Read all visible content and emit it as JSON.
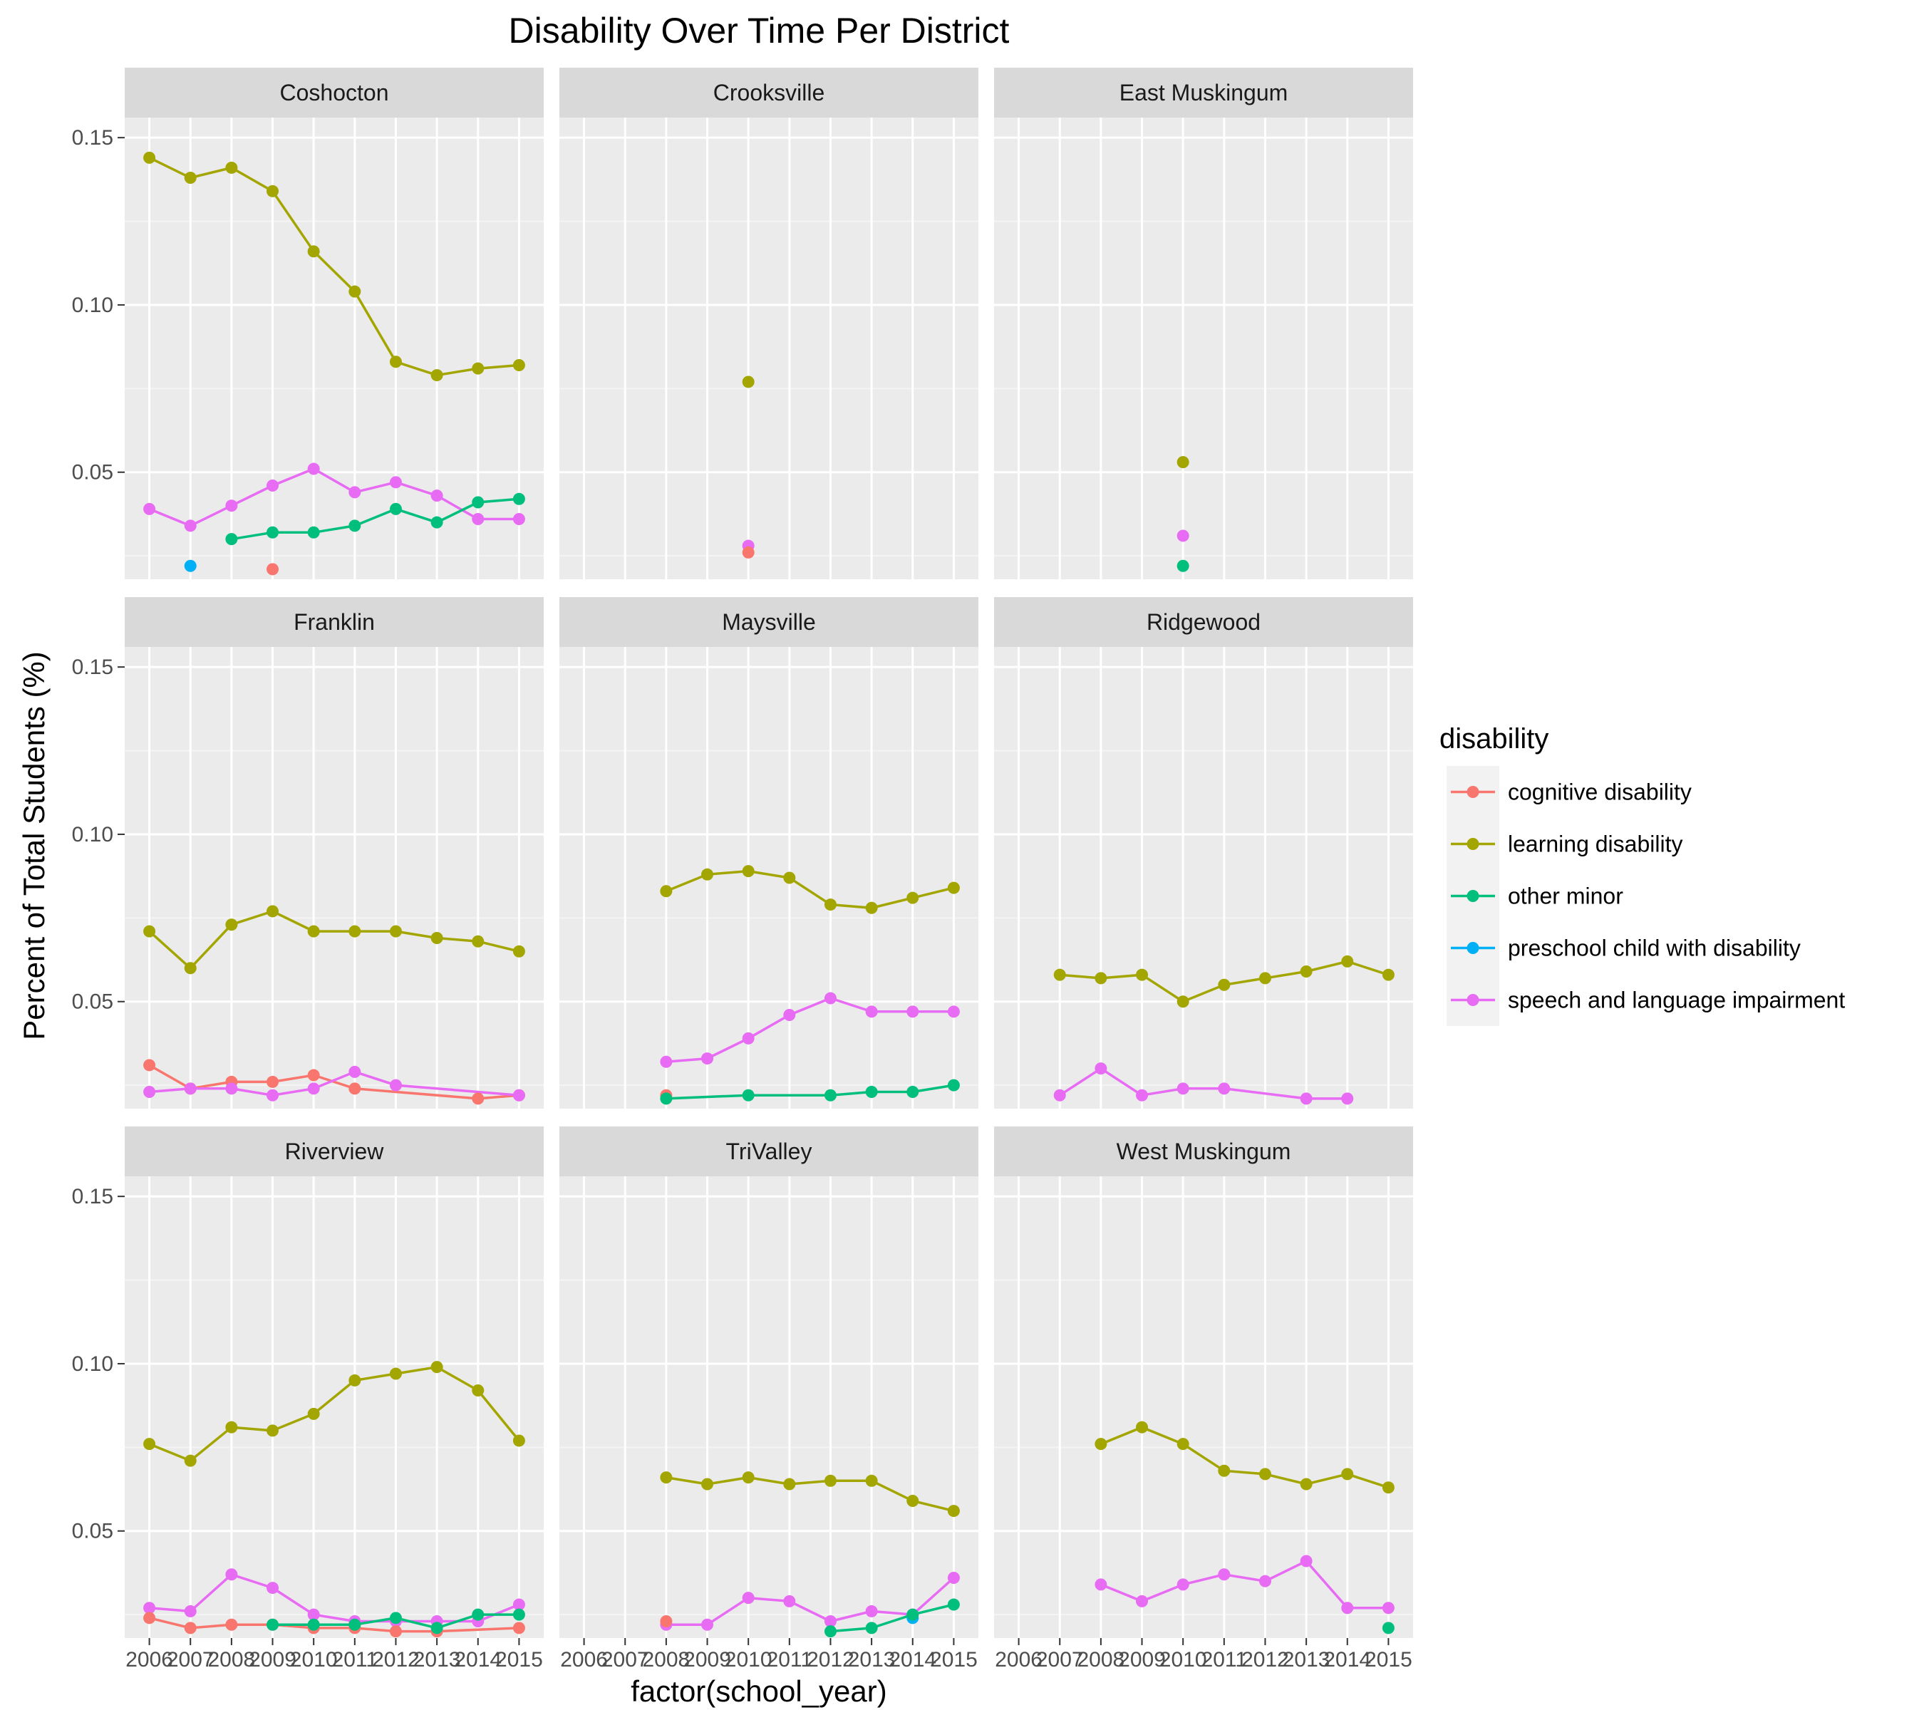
{
  "chart_data": {
    "type": "line",
    "title": "Disability Over Time Per District",
    "xlabel": "factor(school_year)",
    "ylabel": "Percent of Total Students (%)",
    "x_categories": [
      "2006",
      "2007",
      "2008",
      "2009",
      "2010",
      "2011",
      "2012",
      "2013",
      "2014",
      "2015"
    ],
    "y_ticks": [
      0.05,
      0.1,
      0.15
    ],
    "y_tick_labels": [
      "0.05",
      "0.10",
      "0.15"
    ],
    "ylim": [
      0.018,
      0.156
    ],
    "grid": true,
    "legend": {
      "title": "disability",
      "position": "right",
      "entries": [
        {
          "name": "cognitive disability",
          "color": "#F8766D"
        },
        {
          "name": "learning disability",
          "color": "#A3A500"
        },
        {
          "name": "other minor",
          "color": "#00BF7D"
        },
        {
          "name": "preschool child with disability",
          "color": "#00B0F6"
        },
        {
          "name": "speech and language impairment",
          "color": "#E76BF3"
        }
      ]
    },
    "panels": [
      {
        "name": "Coshocton",
        "series": [
          {
            "name": "learning disability",
            "x": [
              "2006",
              "2007",
              "2008",
              "2009",
              "2010",
              "2011",
              "2012",
              "2013",
              "2014",
              "2015"
            ],
            "values": [
              0.144,
              0.138,
              0.141,
              0.134,
              0.116,
              0.104,
              0.083,
              0.079,
              0.081,
              0.082
            ]
          },
          {
            "name": "speech and language impairment",
            "x": [
              "2006",
              "2007",
              "2008",
              "2009",
              "2010",
              "2011",
              "2012",
              "2013",
              "2014",
              "2015"
            ],
            "values": [
              0.039,
              0.034,
              0.04,
              0.046,
              0.051,
              0.044,
              0.047,
              0.043,
              0.036,
              0.036
            ]
          },
          {
            "name": "other minor",
            "x": [
              "2008",
              "2009",
              "2010",
              "2011",
              "2012",
              "2013",
              "2014",
              "2015"
            ],
            "values": [
              0.03,
              0.032,
              0.032,
              0.034,
              0.039,
              0.035,
              0.041,
              0.042
            ]
          },
          {
            "name": "preschool child with disability",
            "x": [
              "2007"
            ],
            "values": [
              0.022
            ]
          },
          {
            "name": "cognitive disability",
            "x": [
              "2009"
            ],
            "values": [
              0.021
            ]
          }
        ]
      },
      {
        "name": "Crooksville",
        "series": [
          {
            "name": "learning disability",
            "x": [
              "2010"
            ],
            "values": [
              0.077
            ]
          },
          {
            "name": "speech and language impairment",
            "x": [
              "2010"
            ],
            "values": [
              0.028
            ]
          },
          {
            "name": "cognitive disability",
            "x": [
              "2010"
            ],
            "values": [
              0.026
            ]
          }
        ]
      },
      {
        "name": "East Muskingum",
        "series": [
          {
            "name": "learning disability",
            "x": [
              "2010"
            ],
            "values": [
              0.053
            ]
          },
          {
            "name": "speech and language impairment",
            "x": [
              "2010"
            ],
            "values": [
              0.031
            ]
          },
          {
            "name": "other minor",
            "x": [
              "2010"
            ],
            "values": [
              0.022
            ]
          }
        ]
      },
      {
        "name": "Franklin",
        "series": [
          {
            "name": "learning disability",
            "x": [
              "2006",
              "2007",
              "2008",
              "2009",
              "2010",
              "2011",
              "2012",
              "2013",
              "2014",
              "2015"
            ],
            "values": [
              0.071,
              0.06,
              0.073,
              0.077,
              0.071,
              0.071,
              0.071,
              0.069,
              0.068,
              0.065
            ]
          },
          {
            "name": "cognitive disability",
            "x": [
              "2006",
              "2007",
              "2008",
              "2009",
              "2010",
              "2011",
              "2014",
              "2015"
            ],
            "values": [
              0.031,
              0.024,
              0.026,
              0.026,
              0.028,
              0.024,
              0.021,
              0.022
            ]
          },
          {
            "name": "speech and language impairment",
            "x": [
              "2006",
              "2007",
              "2008",
              "2009",
              "2010",
              "2011",
              "2012",
              "2015"
            ],
            "values": [
              0.023,
              0.024,
              0.024,
              0.022,
              0.024,
              0.029,
              0.025,
              0.022
            ]
          }
        ]
      },
      {
        "name": "Maysville",
        "series": [
          {
            "name": "learning disability",
            "x": [
              "2008",
              "2009",
              "2010",
              "2011",
              "2012",
              "2013",
              "2014",
              "2015"
            ],
            "values": [
              0.083,
              0.088,
              0.089,
              0.087,
              0.079,
              0.078,
              0.081,
              0.084
            ]
          },
          {
            "name": "speech and language impairment",
            "x": [
              "2008",
              "2009",
              "2010",
              "2011",
              "2012",
              "2013",
              "2014",
              "2015"
            ],
            "values": [
              0.032,
              0.033,
              0.039,
              0.046,
              0.051,
              0.047,
              0.047,
              0.047
            ]
          },
          {
            "name": "cognitive disability",
            "x": [
              "2008"
            ],
            "values": [
              0.022
            ]
          },
          {
            "name": "other minor",
            "x": [
              "2008",
              "2010",
              "2012",
              "2013",
              "2014",
              "2015"
            ],
            "values": [
              0.021,
              0.022,
              0.022,
              0.023,
              0.023,
              0.025
            ]
          }
        ]
      },
      {
        "name": "Ridgewood",
        "series": [
          {
            "name": "learning disability",
            "x": [
              "2007",
              "2008",
              "2009",
              "2010",
              "2011",
              "2012",
              "2013",
              "2014",
              "2015"
            ],
            "values": [
              0.058,
              0.057,
              0.058,
              0.05,
              0.055,
              0.057,
              0.059,
              0.062,
              0.058
            ]
          },
          {
            "name": "speech and language impairment",
            "x": [
              "2007",
              "2008",
              "2009",
              "2010",
              "2011",
              "2013",
              "2014"
            ],
            "values": [
              0.022,
              0.03,
              0.022,
              0.024,
              0.024,
              0.021,
              0.021
            ]
          }
        ]
      },
      {
        "name": "Riverview",
        "series": [
          {
            "name": "learning disability",
            "x": [
              "2006",
              "2007",
              "2008",
              "2009",
              "2010",
              "2011",
              "2012",
              "2013",
              "2014",
              "2015"
            ],
            "values": [
              0.076,
              0.071,
              0.081,
              0.08,
              0.085,
              0.095,
              0.097,
              0.099,
              0.092,
              0.077
            ]
          },
          {
            "name": "speech and language impairment",
            "x": [
              "2006",
              "2007",
              "2008",
              "2009",
              "2010",
              "2011",
              "2012",
              "2013",
              "2014",
              "2015"
            ],
            "values": [
              0.027,
              0.026,
              0.037,
              0.033,
              0.025,
              0.023,
              0.023,
              0.023,
              0.023,
              0.028
            ]
          },
          {
            "name": "cognitive disability",
            "x": [
              "2006",
              "2007",
              "2008",
              "2009",
              "2010",
              "2011",
              "2012",
              "2013",
              "2015"
            ],
            "values": [
              0.024,
              0.021,
              0.022,
              0.022,
              0.021,
              0.021,
              0.02,
              0.02,
              0.021
            ]
          },
          {
            "name": "other minor",
            "x": [
              "2009",
              "2010",
              "2011",
              "2012",
              "2013",
              "2014",
              "2015"
            ],
            "values": [
              0.022,
              0.022,
              0.022,
              0.024,
              0.021,
              0.025,
              0.025
            ]
          }
        ]
      },
      {
        "name": "TriValley",
        "series": [
          {
            "name": "learning disability",
            "x": [
              "2008",
              "2009",
              "2010",
              "2011",
              "2012",
              "2013",
              "2014",
              "2015"
            ],
            "values": [
              0.066,
              0.064,
              0.066,
              0.064,
              0.065,
              0.065,
              0.059,
              0.056
            ]
          },
          {
            "name": "speech and language impairment",
            "x": [
              "2008",
              "2009",
              "2010",
              "2011",
              "2012",
              "2013",
              "2014",
              "2015"
            ],
            "values": [
              0.022,
              0.022,
              0.03,
              0.029,
              0.023,
              0.026,
              0.025,
              0.036
            ]
          },
          {
            "name": "cognitive disability",
            "x": [
              "2008"
            ],
            "values": [
              0.023
            ]
          },
          {
            "name": "preschool child with disability",
            "x": [
              "2014"
            ],
            "values": [
              0.024
            ]
          },
          {
            "name": "other minor",
            "x": [
              "2012",
              "2013",
              "2014",
              "2015"
            ],
            "values": [
              0.02,
              0.021,
              0.025,
              0.028
            ]
          }
        ]
      },
      {
        "name": "West Muskingum",
        "series": [
          {
            "name": "learning disability",
            "x": [
              "2008",
              "2009",
              "2010",
              "2011",
              "2012",
              "2013",
              "2014",
              "2015"
            ],
            "values": [
              0.076,
              0.081,
              0.076,
              0.068,
              0.067,
              0.064,
              0.067,
              0.063
            ]
          },
          {
            "name": "speech and language impairment",
            "x": [
              "2008",
              "2009",
              "2010",
              "2011",
              "2012",
              "2013",
              "2014",
              "2015"
            ],
            "values": [
              0.034,
              0.029,
              0.034,
              0.037,
              0.035,
              0.041,
              0.027,
              0.027
            ]
          },
          {
            "name": "other minor",
            "x": [
              "2015"
            ],
            "values": [
              0.021
            ]
          }
        ]
      }
    ]
  }
}
